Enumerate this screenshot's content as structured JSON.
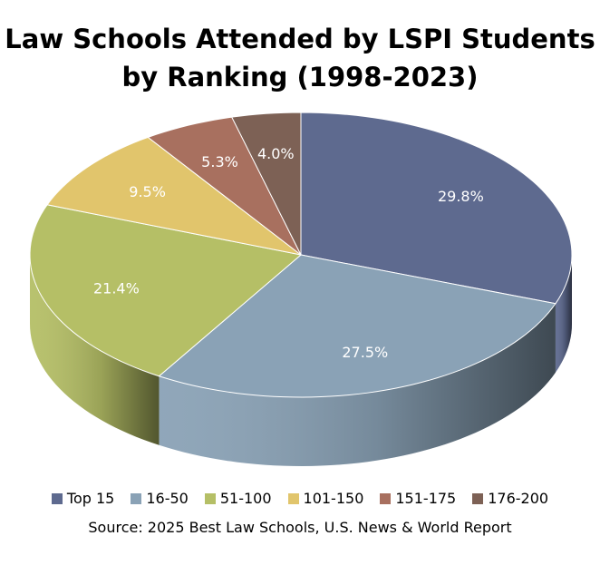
{
  "chart_data": {
    "type": "pie",
    "title_line1": "Law Schools Attended by LSPI Students",
    "title_line2": "by Ranking (1998-2023)",
    "categories": [
      "Top 15",
      "16-50",
      "51-100",
      "101-150",
      "151-175",
      "176-200"
    ],
    "values": [
      29.8,
      27.5,
      21.4,
      9.5,
      5.3,
      4.0
    ],
    "labels": [
      "29.8%",
      "27.5%",
      "21.4%",
      "9.5%",
      "5.3%",
      "4.0%"
    ],
    "colors": [
      "#5e6a8f",
      "#8aa2b6",
      "#b5bf66",
      "#e1c56c",
      "#a8705f",
      "#7d6155"
    ],
    "legend_position": "bottom",
    "source": "Source: 2025 Best Law Schools, U.S. News & World Report"
  }
}
